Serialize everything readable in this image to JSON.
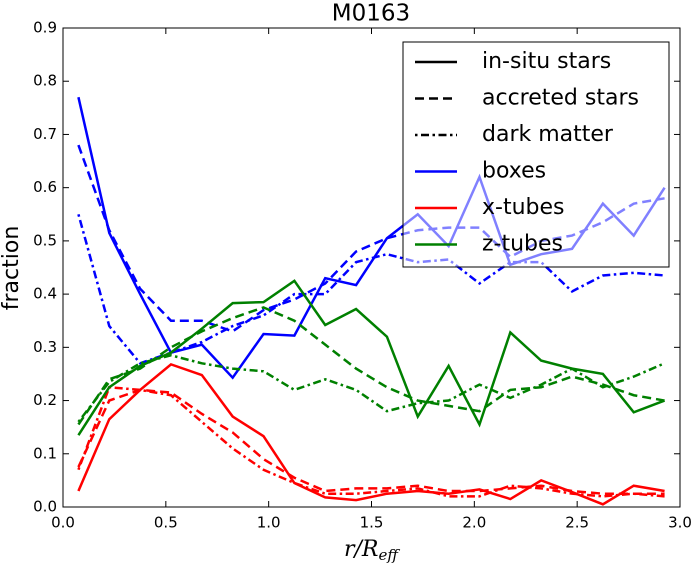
{
  "chart_data": {
    "type": "line",
    "title": "M0163",
    "xlabel": {
      "main": "r/R",
      "sub": "eff"
    },
    "ylabel": "fraction",
    "x": [
      0.075,
      0.225,
      0.375,
      0.525,
      0.675,
      0.825,
      0.975,
      1.125,
      1.275,
      1.425,
      1.575,
      1.725,
      1.875,
      2.025,
      2.175,
      2.325,
      2.475,
      2.625,
      2.775,
      2.925
    ],
    "xlim": [
      0,
      3.0
    ],
    "ylim": [
      0,
      0.9
    ],
    "xticks": [
      {
        "value": 0,
        "label": "0.0"
      },
      {
        "value": 0.5,
        "label": "0.5"
      },
      {
        "value": 1.0,
        "label": "1.0"
      },
      {
        "value": 1.5,
        "label": "1.5"
      },
      {
        "value": 2.0,
        "label": "2.0"
      },
      {
        "value": 2.5,
        "label": "2.5"
      },
      {
        "value": 3.0,
        "label": "3.0"
      }
    ],
    "yticks": [
      {
        "value": 0,
        "label": "0.0"
      },
      0.1,
      0.2,
      0.3,
      0.4,
      0.5,
      0.6,
      0.7,
      0.8,
      0.9
    ],
    "legend_position": "upper right",
    "legend": [
      {
        "label": "in-situ stars",
        "color": "#000000",
        "dash": "solid"
      },
      {
        "label": "accreted stars",
        "color": "#000000",
        "dash": "dashed"
      },
      {
        "label": "dark matter",
        "color": "#000000",
        "dash": "dashdot"
      },
      {
        "label": "boxes",
        "color": "#0000ff",
        "dash": "solid"
      },
      {
        "label": "x-tubes",
        "color": "#ff0000",
        "dash": "solid"
      },
      {
        "label": "z-tubes",
        "color": "#008000",
        "dash": "solid"
      }
    ],
    "series": [
      {
        "color": "#0000ff",
        "dash": "solid",
        "values": [
          0.77,
          0.515,
          0.4,
          0.29,
          0.305,
          0.243,
          0.325,
          0.322,
          0.43,
          0.417,
          0.505,
          0.55,
          0.49,
          0.62,
          0.455,
          0.475,
          0.485,
          0.57,
          0.51,
          0.6
        ]
      },
      {
        "color": "#0000ff",
        "dash": "dashed",
        "values": [
          0.68,
          0.52,
          0.41,
          0.35,
          0.35,
          0.33,
          0.37,
          0.39,
          0.42,
          0.48,
          0.505,
          0.52,
          0.525,
          0.525,
          0.47,
          0.5,
          0.51,
          0.535,
          0.57,
          0.58
        ]
      },
      {
        "color": "#0000ff",
        "dash": "dashdot",
        "values": [
          0.55,
          0.34,
          0.27,
          0.29,
          0.31,
          0.34,
          0.36,
          0.4,
          0.4,
          0.46,
          0.475,
          0.46,
          0.465,
          0.42,
          0.46,
          0.46,
          0.405,
          0.435,
          0.44,
          0.435
        ]
      },
      {
        "color": "#ff0000",
        "dash": "solid",
        "values": [
          0.03,
          0.165,
          0.22,
          0.268,
          0.248,
          0.17,
          0.133,
          0.045,
          0.018,
          0.013,
          0.025,
          0.03,
          0.025,
          0.033,
          0.015,
          0.05,
          0.028,
          0.005,
          0.04,
          0.03
        ]
      },
      {
        "color": "#ff0000",
        "dash": "dashed",
        "values": [
          0.075,
          0.2,
          0.22,
          0.215,
          0.175,
          0.14,
          0.09,
          0.055,
          0.03,
          0.035,
          0.035,
          0.04,
          0.03,
          0.03,
          0.035,
          0.04,
          0.03,
          0.025,
          0.025,
          0.025
        ]
      },
      {
        "color": "#ff0000",
        "dash": "dashdot",
        "values": [
          0.07,
          0.225,
          0.22,
          0.21,
          0.16,
          0.11,
          0.07,
          0.045,
          0.025,
          0.025,
          0.03,
          0.035,
          0.02,
          0.02,
          0.04,
          0.035,
          0.025,
          0.02,
          0.025,
          0.02
        ]
      },
      {
        "color": "#008000",
        "dash": "solid",
        "values": [
          0.135,
          0.225,
          0.265,
          0.29,
          0.335,
          0.383,
          0.385,
          0.425,
          0.342,
          0.372,
          0.32,
          0.17,
          0.265,
          0.155,
          0.328,
          0.275,
          0.26,
          0.25,
          0.178,
          0.2
        ]
      },
      {
        "color": "#008000",
        "dash": "dashed",
        "values": [
          0.155,
          0.24,
          0.26,
          0.3,
          0.33,
          0.355,
          0.375,
          0.35,
          0.305,
          0.26,
          0.225,
          0.2,
          0.19,
          0.18,
          0.22,
          0.225,
          0.245,
          0.23,
          0.21,
          0.2
        ]
      },
      {
        "color": "#008000",
        "dash": "dashdot",
        "values": [
          0.16,
          0.235,
          0.27,
          0.285,
          0.27,
          0.26,
          0.255,
          0.22,
          0.24,
          0.22,
          0.18,
          0.195,
          0.2,
          0.23,
          0.205,
          0.23,
          0.26,
          0.225,
          0.245,
          0.27
        ]
      }
    ]
  }
}
